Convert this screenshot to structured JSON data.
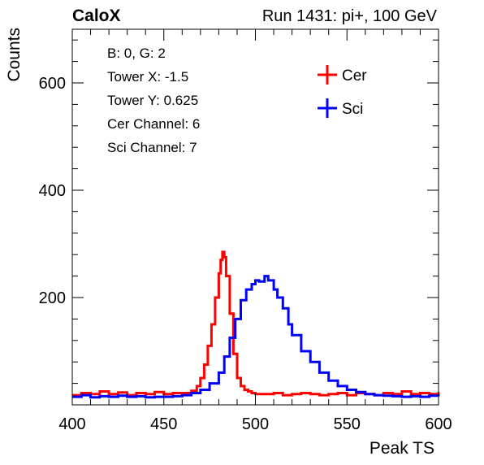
{
  "header": {
    "left": "CaloX",
    "right": "Run 1431: pi+, 100 GeV"
  },
  "info_box": [
    "B: 0, G: 2",
    "Tower X: -1.5",
    "Tower Y: 0.625",
    "Cer Channel: 6",
    "Sci Channel: 7"
  ],
  "colors": {
    "Cer": "#ff0000",
    "Sci": "#0000ff"
  },
  "chart_data": {
    "type": "line",
    "title": "",
    "xlabel": "Peak TS",
    "ylabel": "Counts",
    "xlim": [
      400,
      600
    ],
    "ylim": [
      0,
      700
    ],
    "x_ticks": [
      400,
      450,
      500,
      550,
      600
    ],
    "y_ticks": [
      200,
      400,
      600
    ],
    "grid": false,
    "legend": {
      "position": "top-right",
      "entries": [
        "Cer",
        "Sci"
      ]
    },
    "series": [
      {
        "name": "Cer",
        "x": [
          400,
          405,
          410,
          415,
          420,
          425,
          430,
          435,
          440,
          445,
          450,
          455,
          460,
          465,
          468,
          470,
          472,
          474,
          476,
          478,
          480,
          481,
          482,
          483,
          484,
          486,
          488,
          490,
          492,
          494,
          496,
          498,
          500,
          505,
          510,
          515,
          520,
          525,
          530,
          535,
          540,
          545,
          550,
          555,
          560,
          565,
          570,
          575,
          580,
          585,
          590,
          595,
          600
        ],
        "values": [
          18,
          22,
          20,
          25,
          20,
          23,
          18,
          22,
          20,
          24,
          20,
          22,
          22,
          26,
          35,
          50,
          75,
          110,
          150,
          200,
          245,
          270,
          285,
          275,
          240,
          170,
          95,
          50,
          35,
          28,
          25,
          22,
          20,
          20,
          22,
          18,
          20,
          22,
          20,
          18,
          20,
          22,
          18,
          22,
          20,
          18,
          22,
          20,
          25,
          20,
          22,
          20,
          24
        ]
      },
      {
        "name": "Sci",
        "x": [
          400,
          405,
          410,
          415,
          420,
          425,
          430,
          435,
          440,
          445,
          450,
          455,
          460,
          465,
          470,
          475,
          480,
          483,
          486,
          489,
          492,
          495,
          498,
          500,
          502,
          505,
          507,
          510,
          512,
          515,
          518,
          520,
          525,
          530,
          535,
          540,
          545,
          550,
          555,
          560,
          565,
          570,
          575,
          580,
          585,
          590,
          595,
          600
        ],
        "values": [
          15,
          18,
          14,
          16,
          15,
          17,
          15,
          16,
          14,
          15,
          15,
          16,
          18,
          22,
          28,
          40,
          60,
          90,
          125,
          160,
          195,
          215,
          225,
          232,
          230,
          240,
          232,
          215,
          200,
          180,
          150,
          130,
          100,
          80,
          60,
          45,
          35,
          28,
          24,
          20,
          18,
          17,
          16,
          15,
          16,
          15,
          17,
          16
        ]
      }
    ]
  }
}
